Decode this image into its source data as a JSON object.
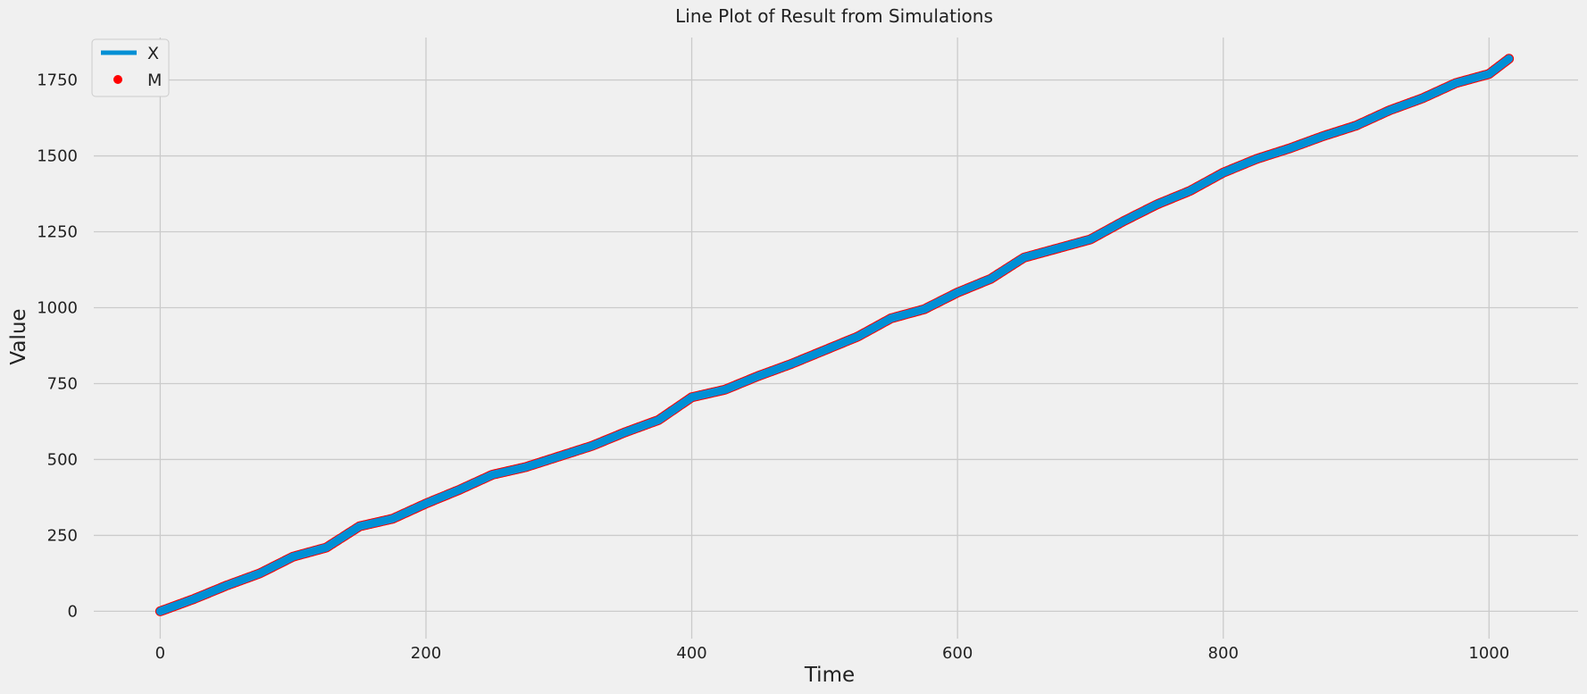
{
  "chart_data": {
    "type": "line",
    "title": "Line Plot of Result from Simulations",
    "xlabel": "Time",
    "ylabel": "Value",
    "xlim": [
      -50,
      1067
    ],
    "ylim": [
      -90,
      1890
    ],
    "xticks": [
      0,
      200,
      400,
      600,
      800,
      1000
    ],
    "yticks": [
      0,
      250,
      500,
      750,
      1000,
      1250,
      1500,
      1750
    ],
    "grid": true,
    "legend": {
      "placement": "top-left"
    },
    "series": [
      {
        "name": "X",
        "style": "line",
        "color": "#008fd5"
      },
      {
        "name": "M",
        "style": "marker",
        "color": "#ff0000"
      }
    ],
    "x": [
      0,
      25,
      50,
      75,
      100,
      125,
      150,
      175,
      200,
      225,
      250,
      275,
      300,
      325,
      350,
      375,
      400,
      425,
      450,
      475,
      500,
      525,
      550,
      575,
      600,
      625,
      650,
      675,
      700,
      725,
      750,
      775,
      800,
      825,
      850,
      875,
      900,
      925,
      950,
      975,
      1000,
      1015
    ],
    "values": [
      0,
      40,
      85,
      125,
      180,
      210,
      280,
      305,
      355,
      400,
      450,
      475,
      510,
      545,
      590,
      630,
      705,
      730,
      775,
      815,
      860,
      905,
      965,
      995,
      1050,
      1095,
      1165,
      1195,
      1225,
      1285,
      1340,
      1385,
      1445,
      1490,
      1525,
      1565,
      1600,
      1650,
      1690,
      1740,
      1770,
      1820
    ]
  }
}
